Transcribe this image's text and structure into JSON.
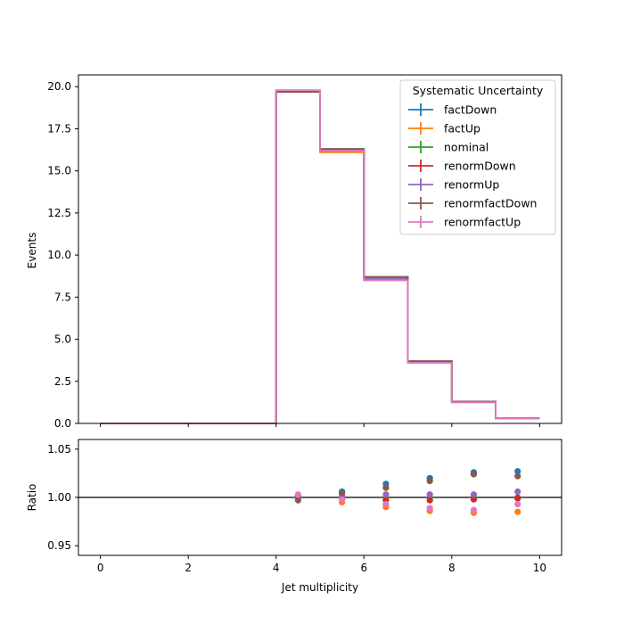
{
  "chart_data": {
    "type": "line",
    "xlabel": "Jet multiplicity",
    "x_ticks": [
      0,
      2,
      4,
      6,
      8,
      10
    ],
    "bin_edges": [
      0,
      1,
      2,
      3,
      4,
      5,
      6,
      7,
      8,
      9,
      10
    ],
    "xlim": [
      -0.5,
      10.5
    ],
    "main": {
      "ylabel": "Events",
      "ylim": [
        0,
        20.7
      ],
      "y_ticks": [
        "0.0",
        "2.5",
        "5.0",
        "7.5",
        "10.0",
        "12.5",
        "15.0",
        "17.5",
        "20.0"
      ]
    },
    "ratio": {
      "ylabel": "Ratio",
      "ylim": [
        0.94,
        1.06
      ],
      "y_ticks": [
        "0.95",
        "1.00",
        "1.05"
      ],
      "reference": 1.0
    },
    "legend": {
      "title": "Systematic Uncertainty",
      "placement": "top-right"
    },
    "series": [
      {
        "name": "factDown",
        "color": "#1f77b4",
        "values": [
          0,
          0,
          0,
          0,
          19.7,
          16.3,
          8.7,
          3.7,
          1.3,
          0.31
        ],
        "ratio": [
          null,
          null,
          null,
          null,
          0.999,
          1.006,
          1.014,
          1.02,
          1.026,
          1.027
        ]
      },
      {
        "name": "factUp",
        "color": "#ff7f0e",
        "values": [
          0,
          0,
          0,
          0,
          19.7,
          16.1,
          8.5,
          3.6,
          1.25,
          0.3
        ],
        "ratio": [
          null,
          null,
          null,
          null,
          1.002,
          0.995,
          0.99,
          0.986,
          0.984,
          0.985
        ]
      },
      {
        "name": "nominal",
        "color": "#2ca02c",
        "values": [
          0,
          0,
          0,
          0,
          19.7,
          16.2,
          8.6,
          3.65,
          1.27,
          0.305
        ],
        "ratio": [
          null,
          null,
          null,
          null,
          1.0,
          1.0,
          1.0,
          1.0,
          1.0,
          1.0
        ]
      },
      {
        "name": "renormDown",
        "color": "#d62728",
        "values": [
          0,
          0,
          0,
          0,
          19.7,
          16.2,
          8.6,
          3.65,
          1.27,
          0.305
        ],
        "ratio": [
          null,
          null,
          null,
          null,
          1.001,
          0.999,
          0.997,
          0.997,
          0.998,
          0.999
        ]
      },
      {
        "name": "renormUp",
        "color": "#9467bd",
        "values": [
          0,
          0,
          0,
          0,
          19.7,
          16.2,
          8.6,
          3.65,
          1.27,
          0.305
        ],
        "ratio": [
          null,
          null,
          null,
          null,
          0.999,
          1.001,
          1.003,
          1.003,
          1.003,
          1.006
        ]
      },
      {
        "name": "renormfactDown",
        "color": "#8c564b",
        "values": [
          0,
          0,
          0,
          0,
          19.7,
          16.3,
          8.7,
          3.7,
          1.3,
          0.31
        ],
        "ratio": [
          null,
          null,
          null,
          null,
          0.997,
          1.004,
          1.01,
          1.017,
          1.024,
          1.022
        ]
      },
      {
        "name": "renormfactUp",
        "color": "#e377c2",
        "values": [
          0,
          0,
          0,
          0,
          19.8,
          16.2,
          8.5,
          3.6,
          1.25,
          0.3
        ],
        "ratio": [
          null,
          null,
          null,
          null,
          1.003,
          0.998,
          0.993,
          0.989,
          0.987,
          0.993
        ]
      }
    ]
  }
}
